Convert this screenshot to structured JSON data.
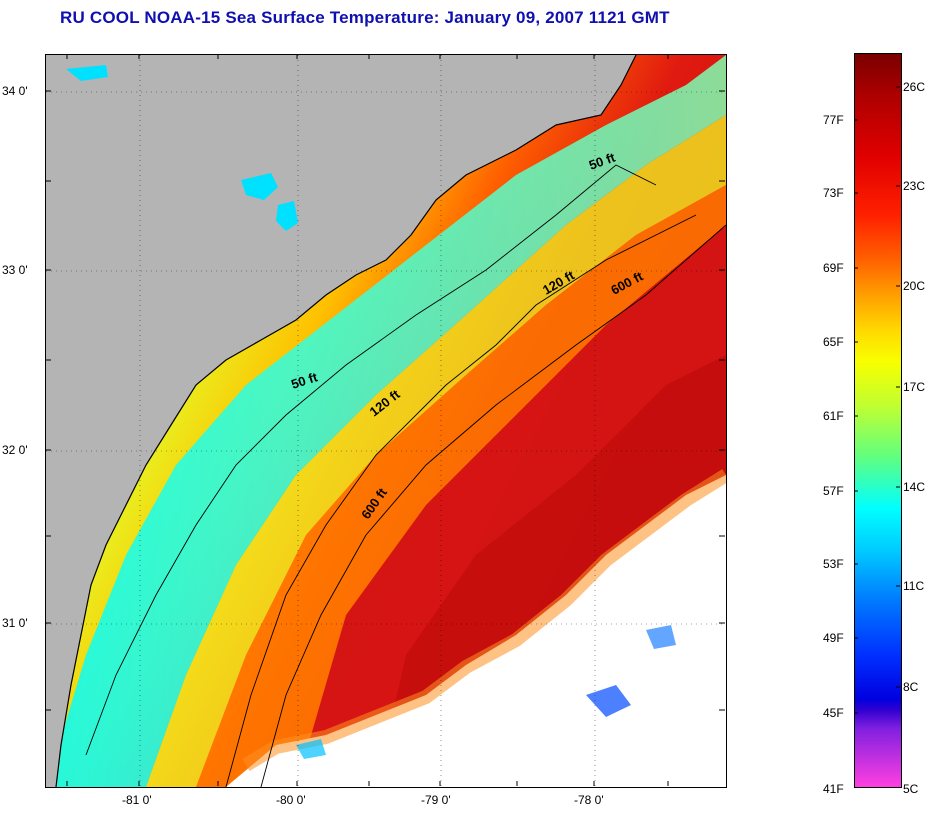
{
  "title": "RU COOL  NOAA-15  Sea Surface Temperature:  January 09, 2007 1121 GMT",
  "map": {
    "lat_labels": [
      "34 0'",
      "33 0'",
      "32 0'",
      "31 0'"
    ],
    "lon_labels": [
      "-81 0'",
      "-80 0'",
      "-79 0'",
      "-78 0'"
    ],
    "contour_labels": [
      "50 ft",
      "120 ft",
      "600 ft",
      "50 ft",
      "120 ft",
      "600 ft"
    ],
    "colors": {
      "land": "#b4b4b4",
      "cloud": "#ffffff",
      "warm": "#d81010",
      "mid": "#ff8a00",
      "cool": "#ffee00",
      "cold": "#00ffff"
    }
  },
  "colorbar": {
    "fahrenheit": [
      "77F",
      "73F",
      "69F",
      "65F",
      "61F",
      "57F",
      "53F",
      "49F",
      "45F",
      "41F"
    ],
    "celsius": [
      "26C",
      "23C",
      "20C",
      "17C",
      "14C",
      "11C",
      "8C",
      "5C"
    ]
  }
}
